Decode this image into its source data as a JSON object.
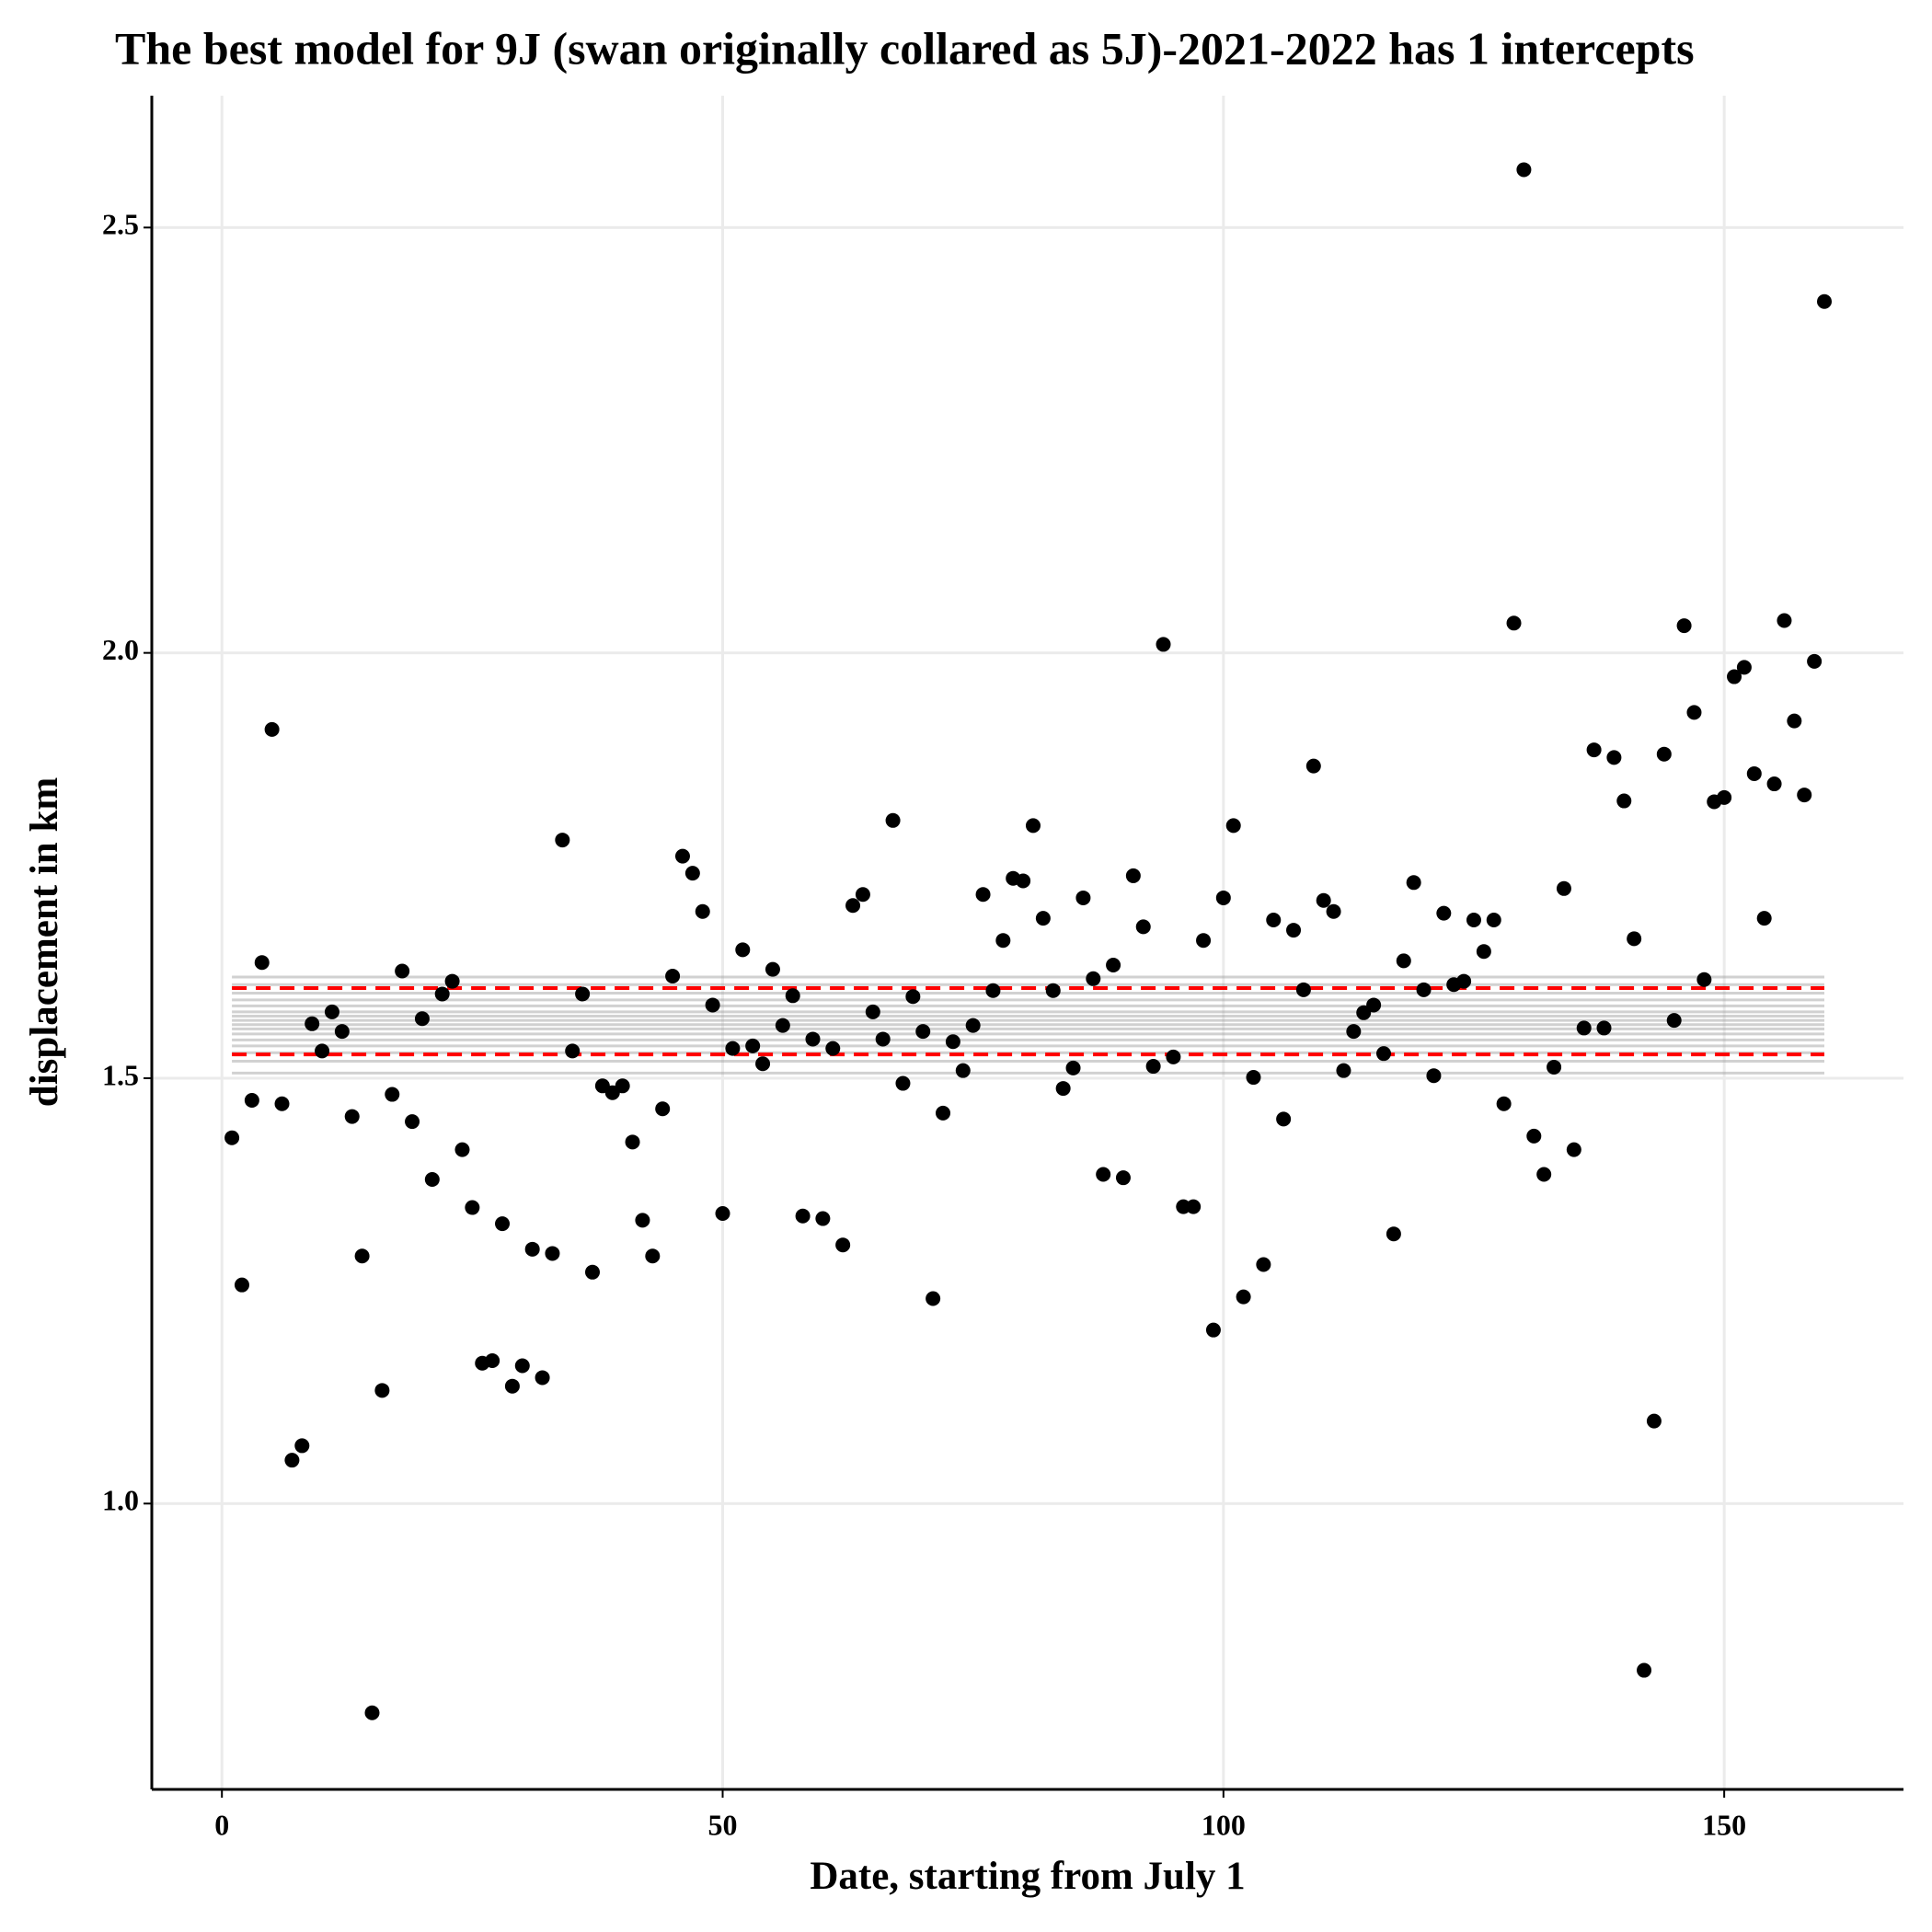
{
  "chart_data": {
    "type": "scatter",
    "title": "The best model for 9J (swan originally collared as 5J)-2021-2022 has 1 intercepts",
    "x_label": "Date, starting from July 1",
    "y_label": "displacement in km",
    "x": [
      1,
      2,
      3,
      4,
      5,
      6,
      7,
      8,
      9,
      10,
      11,
      12,
      13,
      14,
      15,
      16,
      17,
      18,
      19,
      20,
      21,
      22,
      23,
      24,
      25,
      26,
      27,
      28,
      29,
      30,
      31,
      32,
      33,
      34,
      35,
      36,
      37,
      38,
      39,
      40,
      41,
      42,
      43,
      44,
      45,
      46,
      47,
      48,
      49,
      50,
      51,
      52,
      53,
      54,
      55,
      56,
      57,
      58,
      59,
      60,
      61,
      62,
      63,
      64,
      65,
      66,
      67,
      68,
      69,
      70,
      71,
      72,
      73,
      74,
      75,
      76,
      77,
      78,
      79,
      80,
      81,
      82,
      83,
      84,
      85,
      86,
      87,
      88,
      89,
      90,
      91,
      92,
      93,
      94,
      95,
      96,
      97,
      98,
      99,
      100,
      101,
      102,
      103,
      104,
      105,
      106,
      107,
      108,
      109,
      110,
      111,
      112,
      113,
      114,
      115,
      116,
      117,
      118,
      119,
      120,
      121,
      122,
      123,
      124,
      125,
      126,
      127,
      128,
      129,
      130,
      131,
      132,
      133,
      134,
      135,
      136,
      137,
      138,
      139,
      140,
      141,
      142,
      143,
      144,
      145,
      146,
      147,
      148,
      149,
      150,
      151,
      152,
      153,
      154,
      155,
      156,
      157,
      158,
      159,
      160
    ],
    "values": [
      1.43,
      1.257,
      1.474,
      1.636,
      1.91,
      1.47,
      1.051,
      1.068,
      1.564,
      1.532,
      1.578,
      1.555,
      1.455,
      1.291,
      0.754,
      1.133,
      1.481,
      1.626,
      1.449,
      1.57,
      1.381,
      1.599,
      1.614,
      1.416,
      1.348,
      1.165,
      1.168,
      1.329,
      1.138,
      1.162,
      1.299,
      1.148,
      1.294,
      1.78,
      1.532,
      1.599,
      1.272,
      1.491,
      1.483,
      1.491,
      1.425,
      1.333,
      1.291,
      1.464,
      1.62,
      1.761,
      1.741,
      1.696,
      1.586,
      1.341,
      1.535,
      1.651,
      1.538,
      1.517,
      1.628,
      1.562,
      1.597,
      1.338,
      1.546,
      1.335,
      1.535,
      1.304,
      1.703,
      1.716,
      1.578,
      1.546,
      1.803,
      1.494,
      1.596,
      1.555,
      1.241,
      1.459,
      1.543,
      1.509,
      1.562,
      1.716,
      1.603,
      1.662,
      1.735,
      1.732,
      1.797,
      1.688,
      1.603,
      1.488,
      1.512,
      1.712,
      1.617,
      1.387,
      1.633,
      1.383,
      1.738,
      1.678,
      1.514,
      2.01,
      1.525,
      1.349,
      1.349,
      1.662,
      1.204,
      1.712,
      1.797,
      1.243,
      1.501,
      1.281,
      1.686,
      1.452,
      1.674,
      1.604,
      1.867,
      1.709,
      1.696,
      1.509,
      1.555,
      1.577,
      1.586,
      1.529,
      1.317,
      1.638,
      1.73,
      1.604,
      1.503,
      1.694,
      1.61,
      1.614,
      1.686,
      1.649,
      1.686,
      1.47,
      2.035,
      2.568,
      1.432,
      1.387,
      1.513,
      1.723,
      1.416,
      1.559,
      1.886,
      1.559,
      1.877,
      1.826,
      1.664,
      0.804,
      1.097,
      1.881,
      1.568,
      2.032,
      1.93,
      1.616,
      1.825,
      1.83,
      1.972,
      1.983,
      1.858,
      1.688,
      1.846,
      2.038,
      1.92,
      1.833,
      1.99,
      2.413
    ],
    "color": "#000000",
    "line_x": [
      1,
      160
    ],
    "model_lines": {
      "color": "#9a9a9a",
      "values": [
        1.506,
        1.52,
        1.53,
        1.538,
        1.545,
        1.552,
        1.558,
        1.563,
        1.568,
        1.573,
        1.578,
        1.585,
        1.592,
        1.6,
        1.61,
        1.619
      ]
    },
    "interval_lines": {
      "color": "#ff0000",
      "values": [
        1.528,
        1.606
      ]
    },
    "xlim": [
      -7,
      167.9
    ],
    "ylim": [
      0.664,
      2.655
    ],
    "xticks": [
      0,
      50,
      100,
      150
    ],
    "yticks": [
      {
        "value": 1,
        "label": "1.0"
      },
      1.5,
      {
        "value": 2,
        "label": "2.0"
      },
      2.5
    ],
    "grid": true
  }
}
